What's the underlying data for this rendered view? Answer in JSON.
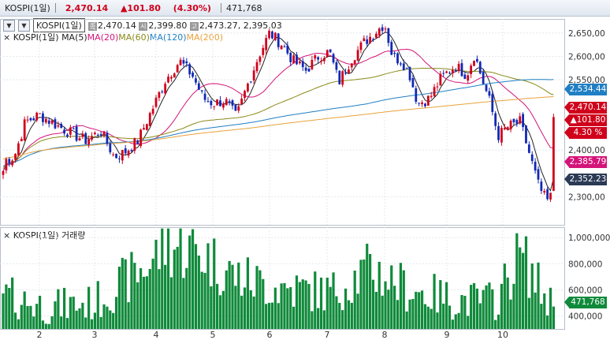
{
  "header": {
    "symbol": "KOSPI(1일)",
    "price": "2,470.14",
    "change": "▲101.80",
    "change_pct": "(4.30%)",
    "volume": "471,768"
  },
  "toolbar": {
    "code": "KOSPI(1일)",
    "open_label": "종",
    "open": "2,470.14",
    "start_label": "시",
    "start": "2,399.80",
    "high_label": "고",
    "high": "2,473.27",
    "low": "2,395.03"
  },
  "legend": {
    "name": "KOSPI(1일)",
    "ma5": "MA(5)",
    "ma20": "MA(20)",
    "ma60": "MA(60)",
    "ma120": "MA(120)",
    "ma200": "MA(200)",
    "volume_label": "KOSPI(1일) 거래량"
  },
  "tags": {
    "ma120": "2,534.44",
    "price": "2,470.14",
    "change": "▲101.80",
    "pct": "4.30 %",
    "ma20": "2,385.79",
    "ma5": "2,352.23",
    "volume": "471,768"
  },
  "colors": {
    "up": "#d0021b",
    "down": "#1228b4",
    "ma5": "#222222",
    "ma20": "#d4147a",
    "ma60": "#8a8a1a",
    "ma120": "#1f7fc4",
    "ma200": "#e8a23a",
    "volume": "#0f8a3a"
  },
  "chart_data": [
    {
      "type": "candlestick",
      "title": "KOSPI(1일)",
      "x_ticks": [
        "2",
        "3",
        "4",
        "5",
        "6",
        "7",
        "8",
        "9",
        "10"
      ],
      "y_ticks": [
        "2,650,00",
        "2,600,00",
        "2,550,00",
        "2,400,00",
        "2,300,00"
      ],
      "ylim": [
        2240,
        2680
      ],
      "series": [
        {
          "name": "MA(5)"
        },
        {
          "name": "MA(20)"
        },
        {
          "name": "MA(60)"
        },
        {
          "name": "MA(120)"
        },
        {
          "name": "MA(200)"
        }
      ],
      "last_close": 2470.14
    },
    {
      "type": "bar",
      "title": "KOSPI(1일) 거래량",
      "y_ticks": [
        "1,000,000",
        "800,000",
        "600,000",
        "400,000"
      ],
      "ylim": [
        300000,
        1080000
      ],
      "last": 471768
    }
  ]
}
